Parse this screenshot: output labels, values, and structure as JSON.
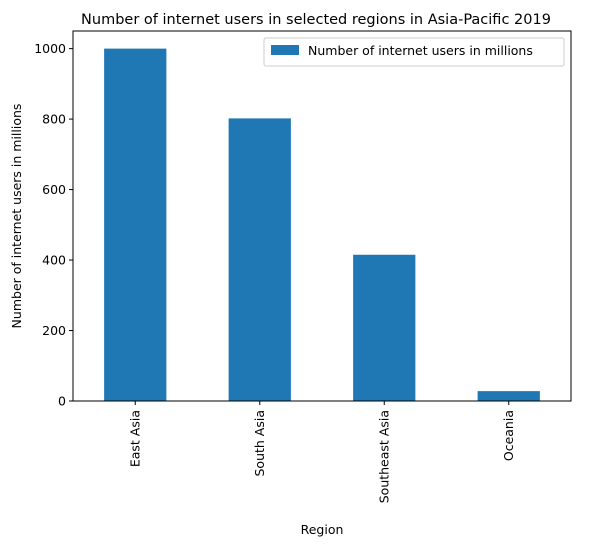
{
  "chart_data": {
    "type": "bar",
    "title": "Number of internet users in selected regions in Asia-Pacific 2019",
    "xlabel": "Region",
    "ylabel": "Number of internet users in millions",
    "categories": [
      "East Asia",
      "South Asia",
      "Southeast Asia",
      "Oceania"
    ],
    "series": [
      {
        "name": "Number of internet users in millions",
        "values": [
          1000,
          802,
          415,
          28
        ]
      }
    ],
    "ylim": [
      0,
      1050
    ],
    "yticks": [
      0,
      200,
      400,
      600,
      800,
      1000
    ],
    "grid": false,
    "legend": "top-right",
    "colors": {
      "bar": "#1f77b4"
    }
  }
}
